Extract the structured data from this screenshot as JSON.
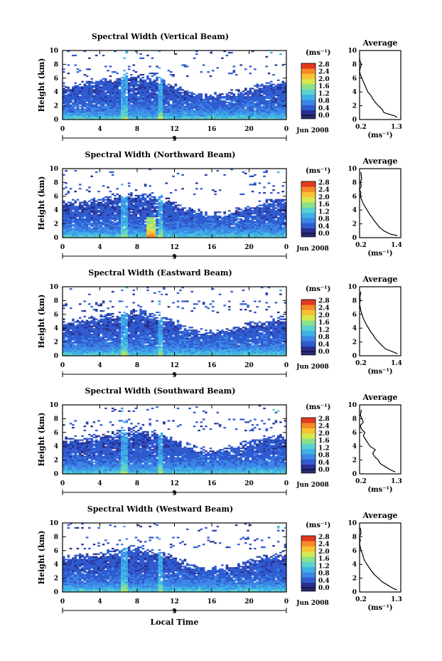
{
  "figure": {
    "x_axis_label": "Local Time",
    "ylabel": "Height (km)",
    "cbar_unit": "(ms⁻¹)",
    "avg_title": "Average",
    "avg_xlabel": "(ms⁻¹)",
    "date_label": "Jun 2008",
    "day_label": "9"
  },
  "colors": {
    "colormap": [
      "#2a2f8f",
      "#2f5bd0",
      "#3c86e6",
      "#3eb1e6",
      "#5bd1cf",
      "#8be08a",
      "#d7e84e",
      "#f7c234",
      "#f58a27",
      "#e23a1f"
    ],
    "below_min": "#2a2a6e",
    "background_sky": "#ffffff"
  },
  "chart_data": [
    {
      "type": "heatmap",
      "title": "Spectral Width (Vertical Beam)",
      "xlabel": "",
      "ylabel": "Height (km)",
      "x_ticks": [
        "0",
        "4",
        "8",
        "12",
        "16",
        "20",
        "0"
      ],
      "y_ticks": [
        "0",
        "2",
        "4",
        "6",
        "8",
        "10"
      ],
      "xlim": [
        0,
        24
      ],
      "ylim": [
        0,
        10
      ],
      "cbar_ticks": [
        "0.0",
        "0.4",
        "0.8",
        "1.2",
        "1.6",
        "2.0",
        "2.4",
        "2.8"
      ],
      "avg": {
        "title": "Average",
        "xlim": [
          0.2,
          1.3
        ],
        "x_ticks": [
          "0.2",
          "1.3"
        ],
        "y_ticks": [
          "0",
          "2",
          "4",
          "6",
          "8",
          "10"
        ],
        "x": [
          1.2,
          1.15,
          0.85,
          0.8,
          0.7,
          0.62,
          0.55,
          0.5,
          0.42,
          0.38,
          0.34,
          0.3,
          0.26,
          0.22,
          0.2,
          0.22,
          0.25,
          0.21,
          0.2
        ],
        "y": [
          0.3,
          0.5,
          1.0,
          1.5,
          2.0,
          2.5,
          3.0,
          3.5,
          4.0,
          4.5,
          5.0,
          5.5,
          6.0,
          6.5,
          7.0,
          7.5,
          8.0,
          8.5,
          9.0
        ]
      }
    },
    {
      "type": "heatmap",
      "title": "Spectral Width (Northward Beam)",
      "xlabel": "",
      "ylabel": "Height (km)",
      "x_ticks": [
        "0",
        "4",
        "8",
        "12",
        "16",
        "20",
        "0"
      ],
      "y_ticks": [
        "0",
        "2",
        "4",
        "6",
        "8",
        "10"
      ],
      "xlim": [
        0,
        24
      ],
      "ylim": [
        0,
        10
      ],
      "cbar_ticks": [
        "0.0",
        "0.4",
        "0.8",
        "1.2",
        "1.6",
        "2.0",
        "2.4",
        "2.8"
      ],
      "avg": {
        "title": "Average",
        "xlim": [
          0.2,
          1.4
        ],
        "x_ticks": [
          "0.2",
          "1.4"
        ],
        "y_ticks": [
          "0",
          "2",
          "4",
          "6",
          "8",
          "10"
        ],
        "x": [
          1.3,
          1.1,
          0.9,
          0.78,
          0.7,
          0.62,
          0.55,
          0.48,
          0.42,
          0.36,
          0.3,
          0.26,
          0.22,
          0.24,
          0.2,
          0.25,
          0.22,
          0.26,
          0.24
        ],
        "y": [
          0.3,
          0.5,
          1.0,
          1.5,
          2.0,
          2.5,
          3.0,
          3.5,
          4.0,
          4.5,
          5.0,
          5.5,
          6.0,
          6.5,
          7.0,
          7.5,
          8.0,
          8.5,
          9.5
        ]
      }
    },
    {
      "type": "heatmap",
      "title": "Spectral Width (Eastward Beam)",
      "xlabel": "",
      "ylabel": "Height (km)",
      "x_ticks": [
        "0",
        "4",
        "8",
        "12",
        "16",
        "20",
        "0"
      ],
      "y_ticks": [
        "0",
        "2",
        "4",
        "6",
        "8",
        "10"
      ],
      "xlim": [
        0,
        24
      ],
      "ylim": [
        0,
        10
      ],
      "cbar_ticks": [
        "0.0",
        "0.4",
        "0.8",
        "1.2",
        "1.6",
        "2.0",
        "2.4",
        "2.8"
      ],
      "avg": {
        "title": "Average",
        "xlim": [
          0.2,
          1.4
        ],
        "x_ticks": [
          "0.2",
          "1.4"
        ],
        "y_ticks": [
          "0",
          "2",
          "4",
          "6",
          "8",
          "10"
        ],
        "x": [
          1.3,
          1.2,
          0.95,
          0.85,
          0.75,
          0.66,
          0.6,
          0.52,
          0.46,
          0.4,
          0.35,
          0.3,
          0.27,
          0.24,
          0.22,
          0.2,
          0.22,
          0.21,
          0.24
        ],
        "y": [
          0.3,
          0.5,
          1.0,
          1.5,
          2.0,
          2.5,
          3.0,
          3.5,
          4.0,
          4.5,
          5.0,
          5.5,
          6.0,
          6.5,
          7.0,
          7.5,
          8.0,
          8.5,
          9.3
        ]
      }
    },
    {
      "type": "heatmap",
      "title": "Spectral Width (Southward Beam)",
      "xlabel": "",
      "ylabel": "Height (km)",
      "x_ticks": [
        "0",
        "4",
        "8",
        "12",
        "16",
        "20",
        "0"
      ],
      "y_ticks": [
        "0",
        "2",
        "4",
        "6",
        "8",
        "10"
      ],
      "xlim": [
        0,
        24
      ],
      "ylim": [
        0,
        10
      ],
      "cbar_ticks": [
        "0.0",
        "0.4",
        "0.8",
        "1.2",
        "1.6",
        "2.0",
        "2.4",
        "2.8"
      ],
      "avg": {
        "title": "Average",
        "xlim": [
          0.2,
          1.3
        ],
        "x_ticks": [
          "0.2",
          "1.3"
        ],
        "y_ticks": [
          "0",
          "2",
          "4",
          "6",
          "8",
          "10"
        ],
        "x": [
          1.15,
          1.05,
          0.9,
          0.75,
          0.7,
          0.6,
          0.55,
          0.62,
          0.48,
          0.42,
          0.36,
          0.3,
          0.34,
          0.25,
          0.22,
          0.3,
          0.26,
          0.22,
          0.25
        ],
        "y": [
          0.3,
          0.5,
          1.0,
          1.5,
          2.0,
          2.5,
          3.0,
          3.5,
          4.0,
          4.5,
          5.0,
          5.5,
          6.0,
          6.5,
          7.0,
          7.5,
          8.0,
          8.5,
          9.3
        ]
      }
    },
    {
      "type": "heatmap",
      "title": "Spectral Width (Westward Beam)",
      "xlabel": "Local Time",
      "ylabel": "Height (km)",
      "x_ticks": [
        "0",
        "4",
        "8",
        "12",
        "16",
        "20",
        "0"
      ],
      "y_ticks": [
        "0",
        "2",
        "4",
        "6",
        "8",
        "10"
      ],
      "xlim": [
        0,
        24
      ],
      "ylim": [
        0,
        10
      ],
      "cbar_ticks": [
        "0.0",
        "0.4",
        "0.8",
        "1.2",
        "1.6",
        "2.0",
        "2.4",
        "2.8"
      ],
      "avg": {
        "title": "Average",
        "xlim": [
          0.2,
          1.3
        ],
        "x_ticks": [
          "0.2",
          "1.3"
        ],
        "y_ticks": [
          "0",
          "2",
          "4",
          "6",
          "8",
          "10"
        ],
        "x": [
          1.2,
          1.1,
          0.95,
          0.8,
          0.7,
          0.6,
          0.52,
          0.46,
          0.4,
          0.34,
          0.3,
          0.28,
          0.24,
          0.22,
          0.2,
          0.22,
          0.2,
          0.24,
          0.22
        ],
        "y": [
          0.3,
          0.5,
          1.0,
          1.5,
          2.0,
          2.5,
          3.0,
          3.5,
          4.0,
          4.5,
          5.0,
          5.5,
          6.0,
          6.5,
          7.0,
          7.5,
          8.0,
          8.5,
          9.3
        ]
      }
    }
  ]
}
